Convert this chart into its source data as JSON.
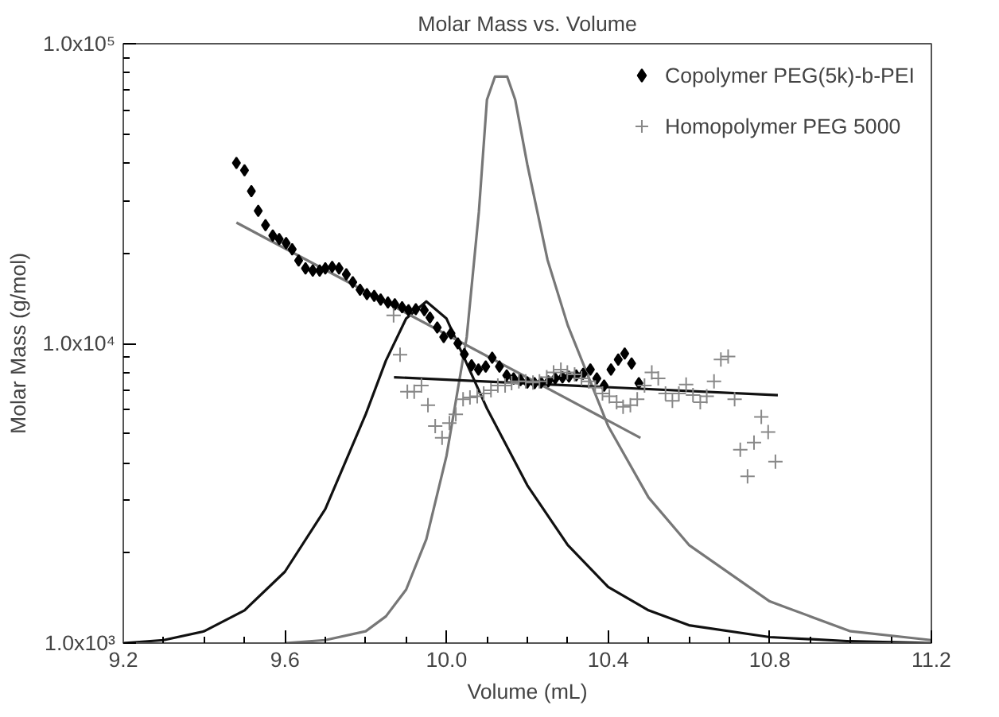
{
  "chart_data": {
    "type": "scatter",
    "title": "Molar Mass vs. Volume",
    "xlabel": "Volume (mL)",
    "ylabel": "Molar Mass (g/mol)",
    "log": "y",
    "grid": false,
    "legend": "top right",
    "xlim": [
      9.2,
      11.2
    ],
    "ylim": [
      1000,
      100000
    ],
    "xticks": [
      9.2,
      {
        "value": 9.3,
        "label": null
      },
      {
        "value": 9.4,
        "label": null
      },
      {
        "value": 9.5,
        "label": null
      },
      9.6,
      {
        "value": 9.7,
        "label": null
      },
      {
        "value": 9.8,
        "label": null
      },
      {
        "value": 9.9,
        "label": null
      },
      {
        "value": 10.0,
        "label": "10.0"
      },
      {
        "value": 10.1,
        "label": null
      },
      {
        "value": 10.2,
        "label": null
      },
      {
        "value": 10.3,
        "label": null
      },
      10.4,
      {
        "value": 10.5,
        "label": null
      },
      {
        "value": 10.6,
        "label": null
      },
      {
        "value": 10.7,
        "label": null
      },
      10.8,
      {
        "value": 10.9,
        "label": null
      },
      {
        "value": 11.0,
        "label": null
      },
      {
        "value": 11.1,
        "label": null
      },
      11.2
    ],
    "yticks": [
      {
        "value": 1000,
        "label": "1.0x10³"
      },
      {
        "value": 2000,
        "label": null
      },
      {
        "value": 3000,
        "label": null
      },
      {
        "value": 4000,
        "label": null
      },
      {
        "value": 5000,
        "label": null
      },
      {
        "value": 6000,
        "label": null
      },
      {
        "value": 7000,
        "label": null
      },
      {
        "value": 8000,
        "label": null
      },
      {
        "value": 9000,
        "label": null
      },
      {
        "value": 10000,
        "label": "1.0x10⁴"
      },
      {
        "value": 20000,
        "label": null
      },
      {
        "value": 30000,
        "label": null
      },
      {
        "value": 40000,
        "label": null
      },
      {
        "value": 50000,
        "label": null
      },
      {
        "value": 60000,
        "label": null
      },
      {
        "value": 70000,
        "label": null
      },
      {
        "value": 80000,
        "label": null
      },
      {
        "value": 90000,
        "label": null
      },
      {
        "value": 100000,
        "label": "1.0x10⁵"
      }
    ],
    "series": [
      {
        "type": "line",
        "color": "#111111",
        "x": [
          9.2,
          9.3,
          9.4,
          9.5,
          9.6,
          9.7,
          9.8,
          9.85,
          9.9,
          9.95,
          10.0,
          10.05,
          10.1,
          10.2,
          10.3,
          10.4,
          10.5,
          10.6,
          10.8,
          11.0,
          11.2
        ],
        "values": [
          1000,
          1023,
          1095,
          1286,
          1730,
          2800,
          5800,
          8760,
          12100,
          13800,
          12100,
          8560,
          6070,
          3360,
          2125,
          1540,
          1286,
          1147,
          1047,
          1014,
          1000
        ]
      },
      {
        "type": "line",
        "color": "#777777",
        "x": [
          9.6,
          9.7,
          9.8,
          9.85,
          9.9,
          9.95,
          10.0,
          10.05,
          10.08,
          10.1,
          10.12,
          10.15,
          10.17,
          10.2,
          10.25,
          10.3,
          10.4,
          10.5,
          10.6,
          10.8,
          11.0,
          11.2
        ],
        "values": [
          1000,
          1023,
          1095,
          1228,
          1508,
          2220,
          4220,
          10500,
          27400,
          65000,
          77700,
          77700,
          65000,
          39500,
          19000,
          11500,
          5300,
          3060,
          2125,
          1377,
          1095,
          1023
        ]
      },
      {
        "type": "line",
        "color": "#777777",
        "x": [
          9.48,
          10.48
        ],
        "values": [
          25300,
          4840
        ]
      },
      {
        "type": "line",
        "color": "#111111",
        "x": [
          9.87,
          10.82
        ],
        "values": [
          7710,
          6720
        ]
      },
      {
        "name": "Copolymer PEG(5k)-b-PEI",
        "marker": "diamond",
        "color": "#000000",
        "x": [
          9.48,
          9.5,
          9.517,
          9.534,
          9.552,
          9.57,
          9.586,
          9.603,
          9.618,
          9.634,
          9.651,
          9.669,
          9.686,
          9.7,
          9.717,
          9.734,
          9.752,
          9.768,
          9.786,
          9.803,
          9.821,
          9.837,
          9.855,
          9.872,
          9.89,
          9.906,
          9.924,
          9.945,
          9.959,
          9.977,
          9.993,
          10.011,
          10.028,
          10.044,
          10.062,
          10.079,
          10.097,
          10.113,
          10.131,
          10.149,
          10.166,
          10.183,
          10.2,
          10.218,
          10.234,
          10.252,
          10.269,
          10.287,
          10.303,
          10.321,
          10.338,
          10.356,
          10.372,
          10.39,
          10.407,
          10.425,
          10.441,
          10.458,
          10.476
        ],
        "values": [
          40000,
          37800,
          32200,
          27700,
          24800,
          22900,
          22300,
          21600,
          20600,
          18900,
          17800,
          17500,
          17500,
          17800,
          18000,
          17800,
          17000,
          16000,
          15100,
          14600,
          14400,
          14000,
          13700,
          13500,
          13200,
          12900,
          13000,
          12900,
          12200,
          11300,
          10500,
          10800,
          10000,
          9200,
          8450,
          8180,
          8370,
          8960,
          8370,
          7820,
          7640,
          7540,
          7400,
          7370,
          7400,
          7470,
          7640,
          7710,
          7750,
          7820,
          7920,
          8180,
          7640,
          7230,
          8180,
          8830,
          9250,
          8570,
          7370
        ]
      },
      {
        "name": "Homopolymer PEG 5000",
        "marker": "cross",
        "color": "#888888",
        "x": [
          9.869,
          9.885,
          9.903,
          9.92,
          9.938,
          9.954,
          9.972,
          9.989,
          10.007,
          10.023,
          10.041,
          10.058,
          10.076,
          10.092,
          10.11,
          10.127,
          10.145,
          10.161,
          10.179,
          10.196,
          10.214,
          10.23,
          10.248,
          10.265,
          10.283,
          10.299,
          10.317,
          10.334,
          10.352,
          10.368,
          10.386,
          10.403,
          10.421,
          10.437,
          10.455,
          10.472,
          10.49,
          10.508,
          10.524,
          10.542,
          10.559,
          10.575,
          10.593,
          10.61,
          10.628,
          10.644,
          10.662,
          10.679,
          10.697,
          10.713,
          10.727,
          10.745,
          10.761,
          10.779,
          10.796,
          10.814
        ],
        "values": [
          12400,
          9160,
          6900,
          6900,
          7230,
          6220,
          5300,
          4840,
          5420,
          5800,
          6510,
          6600,
          6660,
          6810,
          6970,
          7230,
          7230,
          7370,
          7470,
          7470,
          7400,
          7470,
          7710,
          8000,
          8180,
          8000,
          7880,
          7640,
          7470,
          7130,
          6810,
          6660,
          6360,
          6140,
          6220,
          6510,
          7230,
          8000,
          7640,
          6810,
          6430,
          6810,
          7290,
          6720,
          6360,
          6660,
          7470,
          8830,
          9040,
          6510,
          4420,
          3600,
          4670,
          5680,
          5060,
          4030
        ]
      }
    ]
  }
}
